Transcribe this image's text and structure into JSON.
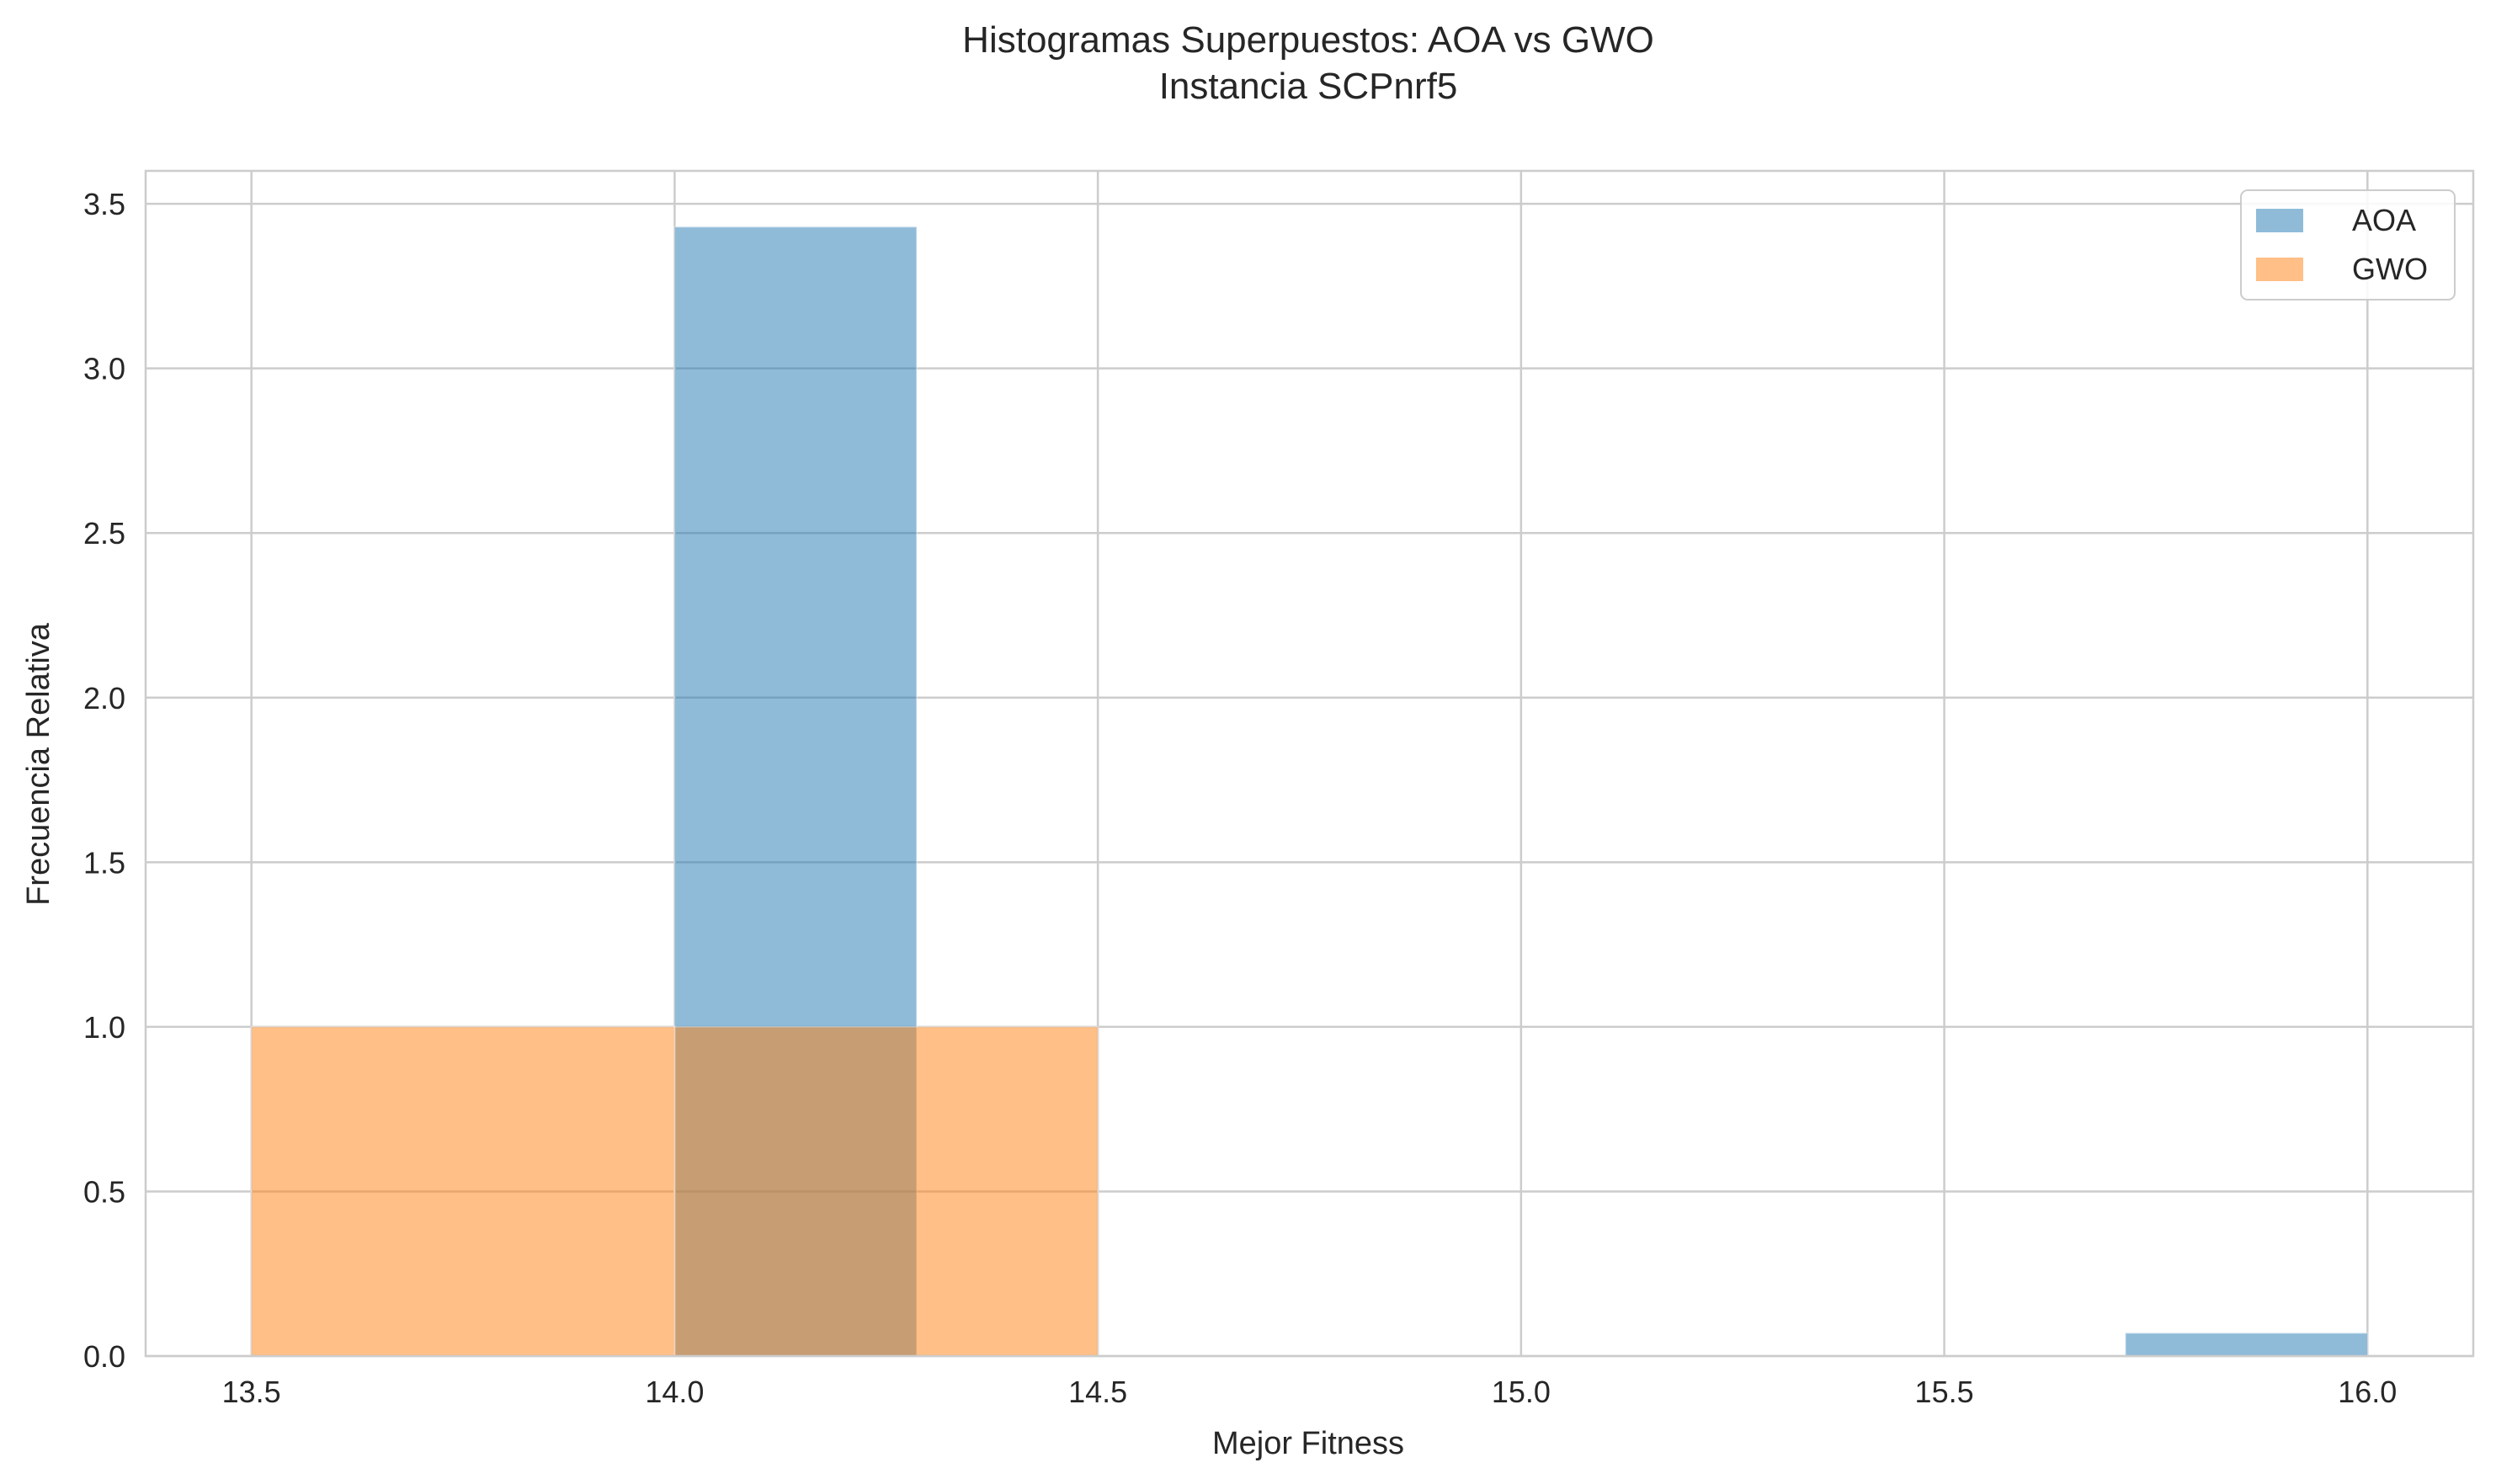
{
  "chart_data": {
    "type": "bar",
    "subtype": "histogram-overlay",
    "title": "Histogramas Superpuestos: AOA vs GWO",
    "subtitle": "Instancia SCPnrf5",
    "xlabel": "Mejor Fitness",
    "ylabel": "Frecuencia Relativa",
    "xlim": [
      13.375,
      16.125
    ],
    "ylim": [
      0,
      3.6
    ],
    "xticks": [
      13.5,
      14.0,
      14.5,
      15.0,
      15.5,
      16.0
    ],
    "xtick_labels": [
      "13.5",
      "14.0",
      "14.5",
      "15.0",
      "15.5",
      "16.0"
    ],
    "yticks": [
      0,
      0.5,
      1.0,
      1.5,
      2.0,
      2.5,
      3.0,
      3.5
    ],
    "ytick_labels": [
      "0.0",
      "0.5",
      "1.0",
      "1.5",
      "2.0",
      "2.5",
      "3.0",
      "3.5"
    ],
    "grid": true,
    "legend_position": "top-right",
    "series": [
      {
        "name": "AOA",
        "color": "#1f77b4",
        "opacity": 0.5,
        "bins": [
          {
            "x0": 14.0,
            "x1": 14.286,
            "value": 3.43
          },
          {
            "x0": 14.286,
            "x1": 14.571,
            "value": 0
          },
          {
            "x0": 14.571,
            "x1": 14.857,
            "value": 0
          },
          {
            "x0": 14.857,
            "x1": 15.143,
            "value": 0
          },
          {
            "x0": 15.143,
            "x1": 15.429,
            "value": 0
          },
          {
            "x0": 15.429,
            "x1": 15.714,
            "value": 0
          },
          {
            "x0": 15.714,
            "x1": 16.0,
            "value": 0.07
          }
        ]
      },
      {
        "name": "GWO",
        "color": "#ff7f0e",
        "opacity": 0.5,
        "bins": [
          {
            "x0": 13.5,
            "x1": 14.0,
            "value": 1.0
          },
          {
            "x0": 14.0,
            "x1": 14.5,
            "value": 1.0
          }
        ]
      }
    ]
  }
}
